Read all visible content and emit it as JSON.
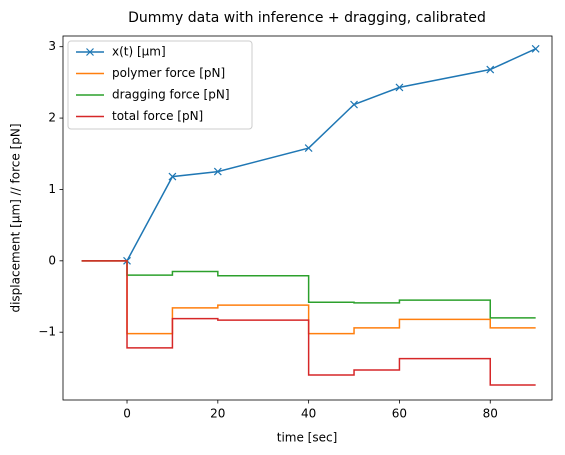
{
  "chart_data": {
    "type": "line",
    "title": "Dummy data with inference + dragging, calibrated",
    "x_label": "time [sec]",
    "y_label": "displacement [µm] // force [pN]",
    "xlim": [
      -14.1,
      93.6
    ],
    "ylim": [
      -1.95,
      3.15
    ],
    "xticks": [
      0,
      20,
      40,
      60,
      80
    ],
    "yticks": [
      {
        "value": -1,
        "label": "−1"
      },
      0,
      1,
      2,
      3
    ],
    "legend": "upper left",
    "series": [
      {
        "name": "x(t) [µm]",
        "color": "#1f77b4",
        "marker": "x",
        "drawstyle": "default",
        "x": [
          0,
          10,
          20,
          40,
          50,
          60,
          80,
          90
        ],
        "values": [
          0,
          1.18,
          1.25,
          1.58,
          2.19,
          2.43,
          2.68,
          2.97
        ]
      },
      {
        "name": "polymer force [pN]",
        "color": "#ff7f0e",
        "drawstyle": "steps-post",
        "x": [
          -10,
          0,
          10,
          20,
          40,
          50,
          60,
          80,
          90
        ],
        "values": [
          0,
          -1.02,
          -0.66,
          -0.62,
          -1.02,
          -0.94,
          -0.82,
          -0.94,
          -0.94
        ]
      },
      {
        "name": "dragging force [pN]",
        "color": "#2ca02c",
        "drawstyle": "steps-post",
        "x": [
          -10,
          0,
          10,
          20,
          40,
          50,
          60,
          80,
          90
        ],
        "values": [
          0,
          -0.2,
          -0.15,
          -0.21,
          -0.58,
          -0.59,
          -0.55,
          -0.8,
          -0.8
        ]
      },
      {
        "name": "total force [pN]",
        "color": "#d62728",
        "drawstyle": "steps-post",
        "x": [
          -10,
          0,
          10,
          20,
          40,
          50,
          60,
          80,
          90
        ],
        "values": [
          0,
          -1.22,
          -0.81,
          -0.83,
          -1.6,
          -1.53,
          -1.37,
          -1.74,
          -1.74
        ]
      }
    ]
  }
}
